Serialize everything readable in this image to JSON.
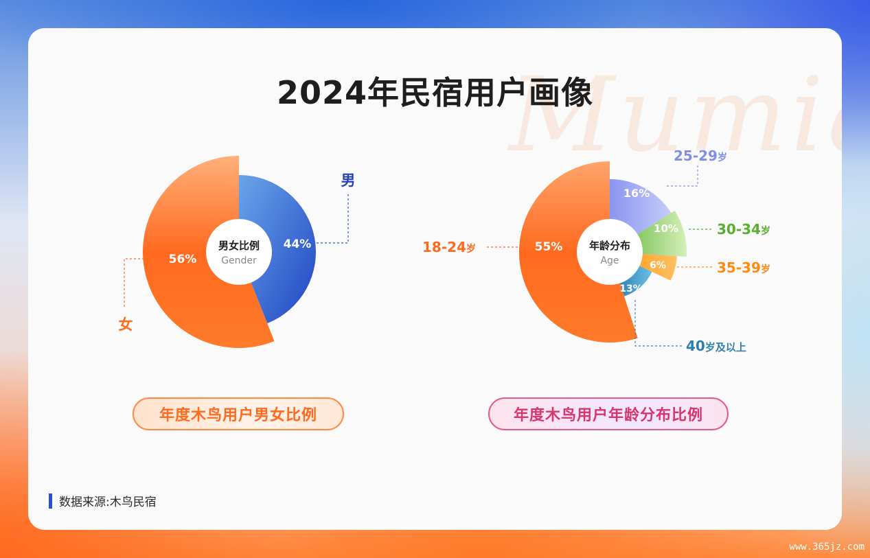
{
  "title": "2024年民宿用户画像",
  "watermark": "Mumia",
  "source": "数据来源:木鸟民宿",
  "site": "www.365jz.com",
  "chart_data": [
    {
      "type": "pie",
      "center_label": "男女比例",
      "center_sub": "Gender",
      "caption": "年度木鸟用户男女比例",
      "slices": [
        {
          "name": "男",
          "value": 44,
          "label": "44%",
          "color": "#3a6bd8"
        },
        {
          "name": "女",
          "value": 56,
          "label": "56%",
          "color": "#ff6a1f"
        }
      ]
    },
    {
      "type": "pie",
      "center_label": "年龄分布",
      "center_sub": "Age",
      "caption": "年度木鸟用户年龄分布比例",
      "slices": [
        {
          "name": "25-29",
          "unit": "岁",
          "value": 16,
          "label": "16%",
          "color": "#8c9cf2"
        },
        {
          "name": "30-34",
          "unit": "岁",
          "value": 10,
          "label": "10%",
          "color": "#6cbf3c"
        },
        {
          "name": "35-39",
          "unit": "岁",
          "value": 6,
          "label": "6%",
          "color": "#ff9a1f"
        },
        {
          "name": "40",
          "unit": "岁及以上",
          "value": 13,
          "label": "13%",
          "color": "#2f86b8"
        },
        {
          "name": "18-24",
          "unit": "岁",
          "value": 55,
          "label": "55%",
          "color": "#ff6a1f"
        }
      ]
    }
  ]
}
